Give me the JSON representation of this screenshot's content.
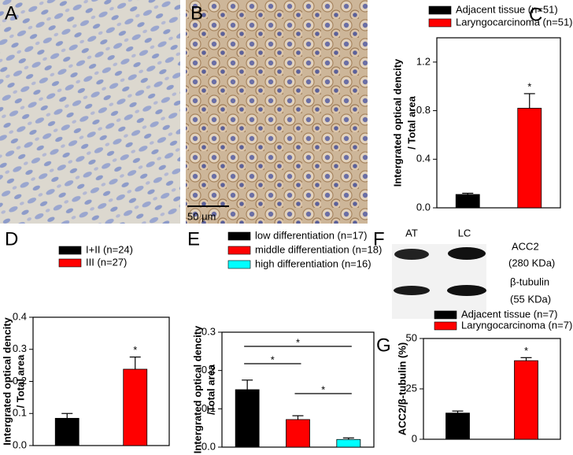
{
  "micrographs": [
    {
      "panel": "A"
    },
    {
      "panel": "B",
      "scale_bar": "50 μm"
    }
  ],
  "blot": {
    "panel": "F",
    "lanes": [
      "AT",
      "LC"
    ],
    "bands": [
      {
        "name": "ACC2",
        "size": "(280 KDa)"
      },
      {
        "name": "β-tubulin",
        "size": "(55 KDa)"
      }
    ]
  },
  "chart_data": [
    {
      "type": "bar",
      "panel": "C",
      "ylabel": [
        "Intergrated optical dencity",
        "/ Total area"
      ],
      "ylim": [
        0,
        1.4
      ],
      "yticks": [
        {
          "value": 0,
          "label": "0.0"
        },
        0.4,
        0.8,
        1.2
      ],
      "series": [
        {
          "name": "Adjacent tissue (n=51)",
          "color": "#000000",
          "values": [
            0.11
          ],
          "errors": [
            0.01
          ]
        },
        {
          "name": "Laryngocarcinoma (n=51)",
          "color": "#ff0000",
          "values": [
            0.82
          ],
          "errors": [
            0.12
          ],
          "annotation": "*"
        }
      ]
    },
    {
      "type": "bar",
      "panel": "D",
      "ylabel": [
        "Intergrated optical dencity",
        "/ Total area"
      ],
      "ylim": [
        0,
        0.4
      ],
      "yticks": [
        {
          "value": 0,
          "label": "0.0"
        },
        0.1,
        0.2,
        0.3,
        0.4
      ],
      "series": [
        {
          "name": "I+II (n=24)",
          "color": "#000000",
          "values": [
            0.085
          ],
          "errors": [
            0.015
          ]
        },
        {
          "name": "III (n=27)",
          "color": "#ff0000",
          "values": [
            0.238
          ],
          "errors": [
            0.038
          ],
          "annotation": "*"
        }
      ]
    },
    {
      "type": "bar",
      "panel": "E",
      "ylabel": [
        "Intergrated optical dencity",
        "/Total area"
      ],
      "ylim": [
        0,
        0.3
      ],
      "yticks": [
        {
          "value": 0,
          "label": "0.0"
        },
        0.1,
        0.2,
        0.3
      ],
      "series": [
        {
          "name": "low differentiation (n=17)",
          "color": "#000000",
          "values": [
            0.15
          ],
          "errors": [
            0.025
          ]
        },
        {
          "name": "middle differentiation (n=18)",
          "color": "#ff0000",
          "values": [
            0.072
          ],
          "errors": [
            0.01
          ]
        },
        {
          "name": "high differentiation (n=16)",
          "color": "#00ffff",
          "values": [
            0.02
          ],
          "errors": [
            0.004
          ]
        }
      ],
      "comparisons": [
        {
          "pair": [
            "low differentiation (n=17)",
            "high differentiation (n=16)"
          ],
          "label": "*"
        },
        {
          "pair": [
            "low differentiation (n=17)",
            "middle differentiation (n=18)"
          ],
          "label": "*"
        },
        {
          "pair": [
            "middle differentiation (n=18)",
            "high differentiation (n=16)"
          ],
          "label": "*"
        }
      ]
    },
    {
      "type": "bar",
      "panel": "G",
      "ylabel": [
        "ACC2/β-tubulin (%)"
      ],
      "ylim": [
        0,
        50
      ],
      "yticks": [
        0,
        25,
        50
      ],
      "series": [
        {
          "name": "Adjacent tissue (n=7)",
          "color": "#000000",
          "values": [
            13
          ],
          "errors": [
            1
          ]
        },
        {
          "name": "Laryngocarcinoma (n=7)",
          "color": "#ff0000",
          "values": [
            39
          ],
          "errors": [
            1.5
          ],
          "annotation": "*"
        }
      ]
    }
  ]
}
